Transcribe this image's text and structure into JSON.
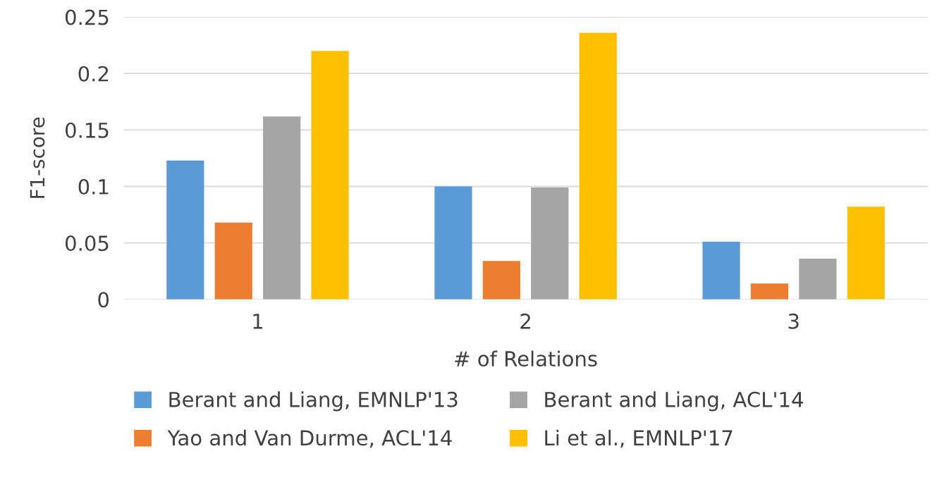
{
  "chart_data": {
    "type": "bar",
    "xlabel": "# of Relations",
    "ylabel": "F1-score",
    "categories": [
      "1",
      "2",
      "3"
    ],
    "series": [
      {
        "name": "Berant and Liang, EMNLP'13",
        "color": "#5b9bd5",
        "values": [
          0.123,
          0.1,
          0.051
        ]
      },
      {
        "name": "Yao and Van Durme, ACL'14",
        "color": "#ed7d31",
        "values": [
          0.068,
          0.034,
          0.014
        ]
      },
      {
        "name": "Berant and Liang, ACL'14",
        "color": "#a5a5a5",
        "values": [
          0.162,
          0.099,
          0.036
        ]
      },
      {
        "name": "Li et al., EMNLP'17",
        "color": "#ffc000",
        "values": [
          0.22,
          0.236,
          0.082
        ]
      }
    ],
    "ylim": [
      0,
      0.25
    ],
    "yticks": [
      0,
      0.05,
      0.1,
      0.15,
      0.2,
      0.25
    ],
    "grid": "y",
    "legend": "bottom"
  }
}
